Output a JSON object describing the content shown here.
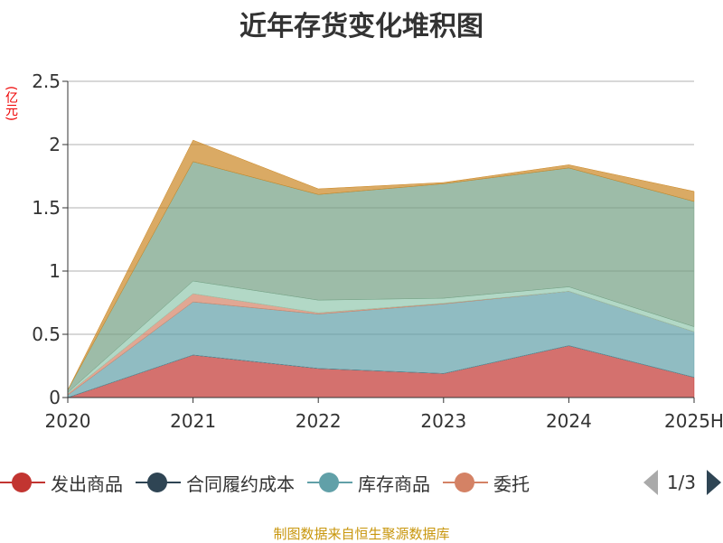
{
  "title": "近年存货变化堆积图",
  "unit": "(亿元)",
  "source": "制图数据来自恒生聚源数据库",
  "legend": {
    "page": "1/3"
  },
  "chart_data": {
    "type": "area",
    "stacked": true,
    "categories": [
      "2020",
      "2021",
      "2022",
      "2023",
      "2024",
      "2025H"
    ],
    "ylim": [
      0,
      2.5
    ],
    "yticks": [
      "0",
      "0.5",
      "1",
      "1.5",
      "2",
      "2.5"
    ],
    "grid": true,
    "legend_position": "bottom",
    "series": [
      {
        "name": "发出商品",
        "color": "#c23531",
        "values": [
          0,
          0.336,
          0.23,
          0.19,
          0.41,
          0.16
        ]
      },
      {
        "name": "合同履约成本",
        "color": "#2f4554",
        "values": [
          0,
          0,
          0,
          0,
          0,
          0
        ]
      },
      {
        "name": "库存商品",
        "color": "#61a0a8",
        "values": [
          0.02,
          0.42,
          0.43,
          0.55,
          0.43,
          0.36
        ]
      },
      {
        "name": "委托",
        "color": "#d48265",
        "values": [
          0.01,
          0.065,
          0.01,
          0.005,
          0,
          0
        ]
      },
      {
        "color": "#91c7ae",
        "values": [
          0.01,
          0.1,
          0.1,
          0.04,
          0.035,
          0.04
        ]
      },
      {
        "color": "#749f83",
        "values": [
          0.02,
          0.944,
          0.835,
          0.905,
          0.94,
          0.99
        ]
      },
      {
        "color": "#ca8622",
        "values": [
          0,
          0.17,
          0.045,
          0.01,
          0.025,
          0.08
        ]
      }
    ]
  }
}
